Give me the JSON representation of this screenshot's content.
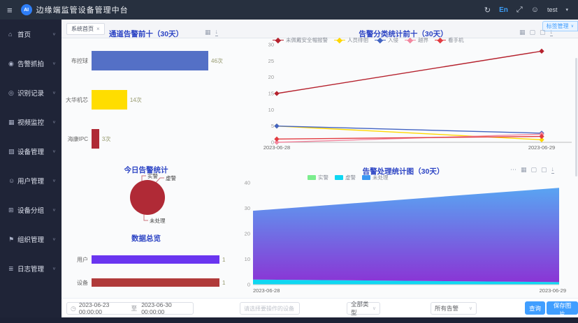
{
  "header": {
    "title": "边缘端监管设备管理中台",
    "logo_text": "AI",
    "language": "En",
    "username": "test"
  },
  "icons": {
    "hamburger": "≡",
    "refresh": "↻",
    "fullscreen": "⤢",
    "caret": "▾",
    "chevron": "∨",
    "download": "↓",
    "chart": "▦",
    "frame": "▢",
    "more": "⋯",
    "clock": "◷",
    "close": "×",
    "user": "☺"
  },
  "sidebar": {
    "items": [
      {
        "label": "首页",
        "icon": "home-icon",
        "glyph": "⌂"
      },
      {
        "label": "告警抓拍",
        "icon": "camera-icon",
        "glyph": "◉"
      },
      {
        "label": "识别记录",
        "icon": "eye-icon",
        "glyph": "◎"
      },
      {
        "label": "视频监控",
        "icon": "monitor-icon",
        "glyph": "▦"
      },
      {
        "label": "设备管理",
        "icon": "device-icon",
        "glyph": "▧"
      },
      {
        "label": "用户管理",
        "icon": "user-icon",
        "glyph": "☺"
      },
      {
        "label": "设备分组",
        "icon": "group-icon",
        "glyph": "⊞"
      },
      {
        "label": "组织管理",
        "icon": "org-icon",
        "glyph": "⚑"
      },
      {
        "label": "日志管理",
        "icon": "log-icon",
        "glyph": "≣"
      }
    ]
  },
  "tabs": [
    {
      "label": "系统首页"
    }
  ],
  "tag_button": {
    "label": "标签管理"
  },
  "footer": {
    "date_from": "2023-06-23 00:00:00",
    "date_separator": "至",
    "date_to": "2023-06-30 00:00:00",
    "device_placeholder": "请选择要操作的设备",
    "type_select": "全部类型",
    "alarm_select": "所有告警",
    "query_button": "查询",
    "save_image_button": "保存图片"
  },
  "chart_data": [
    {
      "id": "channel-alarm-top10",
      "type": "bar",
      "orientation": "horizontal",
      "title": "通道告警前十（30天）",
      "categories": [
        "布控球",
        "大华机芯",
        "海康IPC"
      ],
      "values": [
        46,
        14,
        3
      ],
      "unit": "次",
      "colors": [
        "#5470c6",
        "#ffdd00",
        "#b02a36"
      ],
      "xlim": [
        0,
        46
      ]
    },
    {
      "id": "alarm-class-top10",
      "type": "line",
      "title": "告警分类统计前十（30天）",
      "x": [
        "2023-06-28",
        "2023-06-29"
      ],
      "series": [
        {
          "name": "未佩戴安全帽报警",
          "color": "#b5212d",
          "values": [
            15,
            28
          ]
        },
        {
          "name": "人员徘徊",
          "color": "#ffd700",
          "values": [
            5,
            0.8
          ]
        },
        {
          "name": "入侵",
          "color": "#4263c2",
          "values": [
            5,
            2.8
          ]
        },
        {
          "name": "越界",
          "color": "#f2879f",
          "values": [
            0,
            2.5
          ]
        },
        {
          "name": "看手机",
          "color": "#e23b41",
          "values": [
            1,
            1.8
          ]
        }
      ],
      "ylim": [
        0,
        30
      ],
      "yticks": [
        0,
        5,
        10,
        15,
        20,
        25,
        30
      ],
      "legend_position": "top"
    },
    {
      "id": "today-alarm-stat",
      "type": "pie",
      "title": "今日告警统计",
      "slices": [
        {
          "name": "实警",
          "value": 0
        },
        {
          "name": "虚警",
          "value": 0
        },
        {
          "name": "未处理",
          "value": 100,
          "color": "#b02a36"
        }
      ]
    },
    {
      "id": "data-overview",
      "type": "bar",
      "orientation": "horizontal",
      "title": "数据总览",
      "categories": [
        "用户",
        "设备"
      ],
      "values": [
        1,
        1
      ],
      "unit": "",
      "colors": [
        "#6a35f0",
        "#b03a3a"
      ],
      "xlim": [
        0,
        1
      ]
    },
    {
      "id": "alarm-process-30d",
      "type": "area",
      "stacked": true,
      "title": "告警处理统计图（30天）",
      "x": [
        "2023-06-28",
        "2023-06-29"
      ],
      "series": [
        {
          "name": "实警",
          "color": "#7bed8d",
          "values": [
            0,
            0
          ]
        },
        {
          "name": "虚警",
          "color": "#0fd7f2",
          "values": [
            2,
            1
          ]
        },
        {
          "name": "未处理",
          "color": "#3a97f2",
          "gradient": [
            "#59a4f2",
            "#8a35d5"
          ],
          "values": [
            27,
            37
          ]
        }
      ],
      "ylim": [
        0,
        40
      ],
      "yticks": [
        0,
        10,
        20,
        30,
        40
      ],
      "legend_position": "top"
    }
  ]
}
